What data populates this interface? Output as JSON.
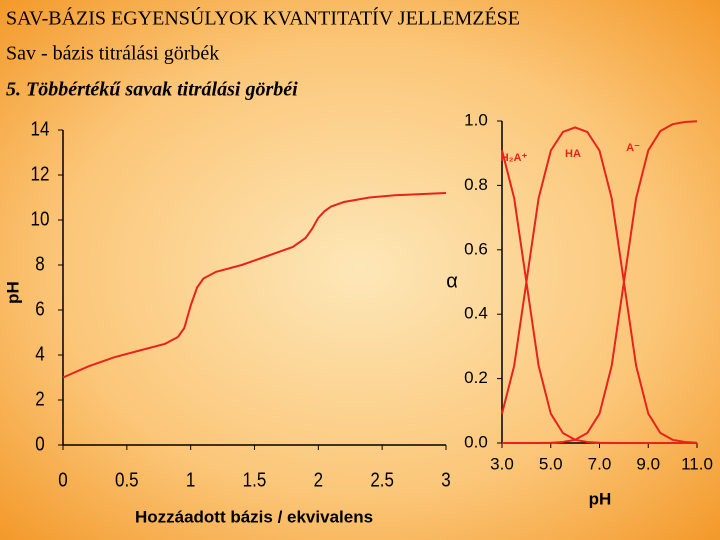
{
  "header": {
    "title": "SAV-BÁZIS EGYENSÚLYOK KVANTITATÍV JELLEMZÉSE",
    "subtitle": "Sav - bázis titrálási görbék",
    "section": "5. Többértékű savak titrálási görbéi"
  },
  "chart_data": [
    {
      "type": "line",
      "xlabel": "Hozzáadott bázis / ekvivalens",
      "ylabel": "pH",
      "x": [
        0,
        0.2,
        0.4,
        0.6,
        0.8,
        0.9,
        0.95,
        1.0,
        1.05,
        1.1,
        1.2,
        1.4,
        1.6,
        1.8,
        1.9,
        1.95,
        2.0,
        2.05,
        2.1,
        2.2,
        2.4,
        2.6,
        2.8,
        3.0
      ],
      "series": [
        {
          "color": "#e8231c",
          "values": [
            3.0,
            3.5,
            3.9,
            4.2,
            4.5,
            4.8,
            5.2,
            6.2,
            7.0,
            7.4,
            7.7,
            8.0,
            8.4,
            8.8,
            9.2,
            9.6,
            10.1,
            10.4,
            10.6,
            10.8,
            11.0,
            11.1,
            11.15,
            11.2
          ]
        }
      ],
      "xlim": [
        0,
        3
      ],
      "ylim": [
        0,
        14
      ],
      "xticks": [
        0,
        0.5,
        1,
        1.5,
        2,
        2.5,
        3
      ],
      "yticks": [
        0,
        2,
        4,
        6,
        8,
        10,
        12,
        14
      ]
    },
    {
      "type": "line",
      "xlabel": "pH",
      "ylabel": "α",
      "x": [
        3,
        3.5,
        4,
        4.5,
        5,
        5.5,
        6,
        6.5,
        7,
        7.5,
        8,
        8.5,
        9,
        9.5,
        10,
        10.5,
        11
      ],
      "series": [
        {
          "name": "H₂A⁺",
          "color": "#e8231c",
          "values": [
            0.909,
            0.76,
            0.5,
            0.24,
            0.091,
            0.031,
            0.01,
            0.003,
            0.001,
            0,
            0,
            0,
            0,
            0,
            0,
            0,
            0
          ]
        },
        {
          "name": "HA",
          "color": "#e8231c",
          "values": [
            0.091,
            0.24,
            0.5,
            0.76,
            0.908,
            0.966,
            0.98,
            0.966,
            0.908,
            0.76,
            0.5,
            0.24,
            0.091,
            0.031,
            0.01,
            0.003,
            0.001
          ]
        },
        {
          "name": "A⁻",
          "color": "#e8231c",
          "values": [
            0,
            0,
            0,
            0,
            0.001,
            0.003,
            0.01,
            0.031,
            0.091,
            0.24,
            0.5,
            0.76,
            0.909,
            0.969,
            0.99,
            0.997,
            0.999
          ]
        }
      ],
      "xlim": [
        3,
        11
      ],
      "ylim": [
        0,
        1
      ],
      "xticks": [
        {
          "value": 3,
          "label": "3.0"
        },
        {
          "value": 5,
          "label": "5.0"
        },
        {
          "value": 7,
          "label": "7.0"
        },
        {
          "value": 9,
          "label": "9.0"
        },
        {
          "value": 11,
          "label": "11.0"
        }
      ],
      "yticks": [
        {
          "value": 0,
          "label": "0.0"
        },
        {
          "value": 0.2,
          "label": "0.2"
        },
        {
          "value": 0.4,
          "label": "0.4"
        },
        {
          "value": 0.6,
          "label": "0.6"
        },
        {
          "value": 0.8,
          "label": "0.8"
        },
        {
          "value": 1,
          "label": "1.0"
        }
      ]
    }
  ]
}
